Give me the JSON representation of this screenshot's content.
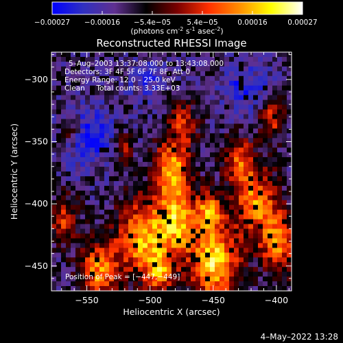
{
  "colorbar": {
    "ticks": [
      "-0.00027",
      "-0.00016",
      "-5.4e-05",
      "5.4e-05",
      "0.00016",
      "0.00027"
    ],
    "units_prefix": "(photons cm",
    "units_exp1": "-2",
    "units_mid": " s",
    "units_exp2": "-1",
    "units_mid2": " asec",
    "units_exp3": "-2",
    "units_suffix": ")",
    "gradient_colors": [
      "#0000ff",
      "#3030c0",
      "#603090",
      "#000000",
      "#7a0000",
      "#ff3000",
      "#ff9000",
      "#ffff00",
      "#ffffff"
    ]
  },
  "chart_data": {
    "type": "heatmap",
    "title": "Reconstructed RHESSI Image",
    "xlabel": "Heliocentric X (arcsec)",
    "ylabel": "Heliocentric Y (arcsec)",
    "xlim": [
      -578,
      -388
    ],
    "ylim": [
      -470,
      -278
    ],
    "xticks": [
      -550,
      -500,
      -450,
      -400
    ],
    "yticks": [
      -450,
      -400,
      -350,
      -300
    ],
    "xtick_labels": [
      "−550",
      "−500",
      "−450",
      "−400"
    ],
    "ytick_labels": [
      "−450",
      "−400",
      "−350",
      "−300"
    ],
    "value_range": [
      -0.00027,
      0.00027
    ],
    "peak": [
      -447,
      -449
    ],
    "annotations": [
      "5–Aug–2003 13:37:08.000 to 13:43:08.000",
      "Detectors: 3F 4F 5F 6F 7F 8F, Att 0",
      "Energy Range: 12.0 – 25.0 keV",
      "Clean     Total counts: 3.33E+03"
    ],
    "peak_label": "Position of Peak = [−447,−449]"
  },
  "footer": {
    "date": "4–May–2022 13:28"
  }
}
